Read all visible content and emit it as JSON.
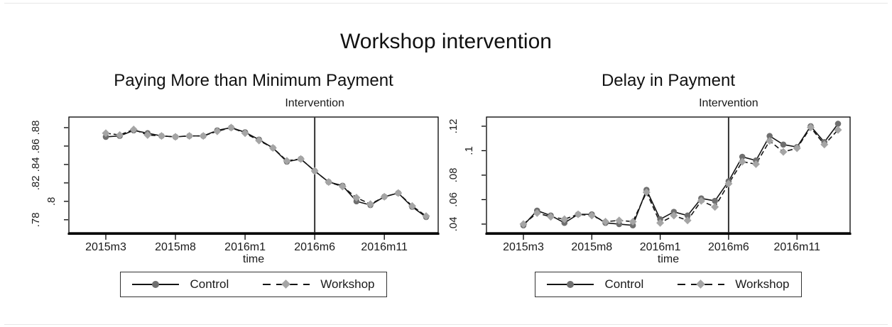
{
  "title": "Workshop intervention",
  "legend": {
    "control_label": "Control",
    "workshop_label": "Workshop"
  },
  "colors": {
    "line": "#141414",
    "control_marker": "#6f6f6f",
    "workshop_marker": "#a5a5a5",
    "intervention_line": "#333333",
    "axis": "#000000",
    "tick_text": "#1a1a1a"
  },
  "chart_data": [
    {
      "type": "line",
      "title": "Paying More than Minimum Payment",
      "xlabel": "time",
      "ylabel": "",
      "grid": false,
      "legend_position": "bottom",
      "x": [
        "2015m3",
        "2015m4",
        "2015m5",
        "2015m6",
        "2015m7",
        "2015m8",
        "2015m9",
        "2015m10",
        "2015m11",
        "2015m12",
        "2016m1",
        "2016m2",
        "2016m3",
        "2016m4",
        "2016m5",
        "2016m6",
        "2016m7",
        "2016m8",
        "2016m9",
        "2016m10",
        "2016m11",
        "2016m12",
        "2017m1",
        "2017m2"
      ],
      "series": [
        {
          "name": "Control",
          "values": [
            0.87,
            0.871,
            0.877,
            0.874,
            0.871,
            0.87,
            0.871,
            0.871,
            0.877,
            0.88,
            0.875,
            0.867,
            0.858,
            0.843,
            0.846,
            0.833,
            0.821,
            0.817,
            0.8,
            0.796,
            0.805,
            0.809,
            0.794,
            0.783
          ]
        },
        {
          "name": "Workshop",
          "values": [
            0.874,
            0.872,
            0.878,
            0.872,
            0.871,
            0.87,
            0.871,
            0.871,
            0.876,
            0.88,
            0.874,
            0.866,
            0.858,
            0.844,
            0.846,
            0.833,
            0.821,
            0.816,
            0.804,
            0.797,
            0.805,
            0.809,
            0.795,
            0.784
          ]
        }
      ],
      "ylim": [
        0.766,
        0.8915
      ],
      "yticks": [
        0.78,
        0.8,
        0.82,
        0.84,
        0.86,
        0.88
      ],
      "ytick_labels": [
        ".78",
        ".8",
        ".82",
        ".84",
        ".86",
        ".88"
      ],
      "xtick_indices": [
        0,
        5,
        10,
        15,
        20
      ],
      "xtick_labels": [
        "2015m3",
        "2015m8",
        "2016m1",
        "2016m6",
        "2016m11"
      ],
      "annotation": {
        "label": "Intervention",
        "x": "2016m6",
        "x_index": 15
      }
    },
    {
      "type": "line",
      "title": "Delay in Payment",
      "xlabel": "time",
      "ylabel": "",
      "grid": false,
      "legend_position": "bottom",
      "x": [
        "2015m3",
        "2015m4",
        "2015m5",
        "2015m6",
        "2015m7",
        "2015m8",
        "2015m9",
        "2015m10",
        "2015m11",
        "2015m12",
        "2016m1",
        "2016m2",
        "2016m3",
        "2016m4",
        "2016m5",
        "2016m6",
        "2016m7",
        "2016m8",
        "2016m9",
        "2016m10",
        "2016m11",
        "2016m12",
        "2017m1",
        "2017m2"
      ],
      "series": [
        {
          "name": "Control",
          "values": [
            0.039,
            0.051,
            0.047,
            0.041,
            0.048,
            0.048,
            0.041,
            0.04,
            0.039,
            0.068,
            0.044,
            0.05,
            0.047,
            0.061,
            0.059,
            0.075,
            0.095,
            0.092,
            0.112,
            0.105,
            0.103,
            0.12,
            0.107,
            0.122
          ]
        },
        {
          "name": "Workshop",
          "values": [
            0.04,
            0.049,
            0.046,
            0.044,
            0.048,
            0.047,
            0.042,
            0.043,
            0.042,
            0.066,
            0.041,
            0.047,
            0.043,
            0.059,
            0.054,
            0.073,
            0.091,
            0.089,
            0.108,
            0.099,
            0.102,
            0.119,
            0.105,
            0.117
          ]
        }
      ],
      "ylim": [
        0.033,
        0.1275
      ],
      "yticks": [
        0.04,
        0.06,
        0.08,
        0.1,
        0.12
      ],
      "ytick_labels": [
        ".04",
        ".06",
        ".08",
        ".1",
        ".12"
      ],
      "xtick_indices": [
        0,
        5,
        10,
        15,
        20
      ],
      "xtick_labels": [
        "2015m3",
        "2015m8",
        "2016m1",
        "2016m6",
        "2016m11"
      ],
      "annotation": {
        "label": "Intervention",
        "x": "2016m6",
        "x_index": 15
      }
    }
  ]
}
